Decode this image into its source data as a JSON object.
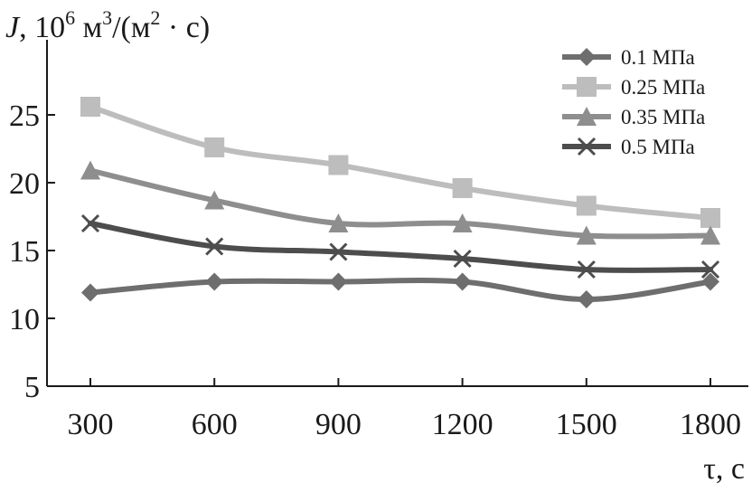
{
  "chart_data": {
    "type": "line",
    "ylabel": {
      "symbol": "J",
      "rest_before_sup1": ", 10",
      "sup1": "6",
      "rest_mid1": " м",
      "sup2": "3",
      "rest_mid2": "/(м",
      "sup3": "2",
      "rest_end": " · с)"
    },
    "xlabel": "τ, с",
    "x": [
      300,
      600,
      900,
      1200,
      1500,
      1800
    ],
    "xticks": [
      "300",
      "600",
      "900",
      "1200",
      "1500",
      "1800"
    ],
    "yticks": [
      "5",
      "10",
      "15",
      "20",
      "25"
    ],
    "ylim": [
      5,
      28
    ],
    "legend_position": "top-right",
    "series": [
      {
        "name": "0.1 МПа",
        "marker": "diamond",
        "color": "#6e6e6e",
        "values": [
          11.9,
          12.7,
          12.7,
          12.7,
          11.4,
          12.7
        ]
      },
      {
        "name": "0.25 МПа",
        "marker": "square",
        "color": "#bdbdbd",
        "values": [
          25.6,
          22.6,
          21.3,
          19.6,
          18.3,
          17.4
        ]
      },
      {
        "name": "0.35 МПа",
        "marker": "triangle",
        "color": "#8e8e8e",
        "values": [
          20.9,
          18.7,
          17.0,
          17.0,
          16.1,
          16.1
        ]
      },
      {
        "name": "0.5 МПа",
        "marker": "cross",
        "color": "#4d4d4d",
        "values": [
          17.0,
          15.3,
          14.9,
          14.4,
          13.6,
          13.6
        ]
      }
    ]
  }
}
